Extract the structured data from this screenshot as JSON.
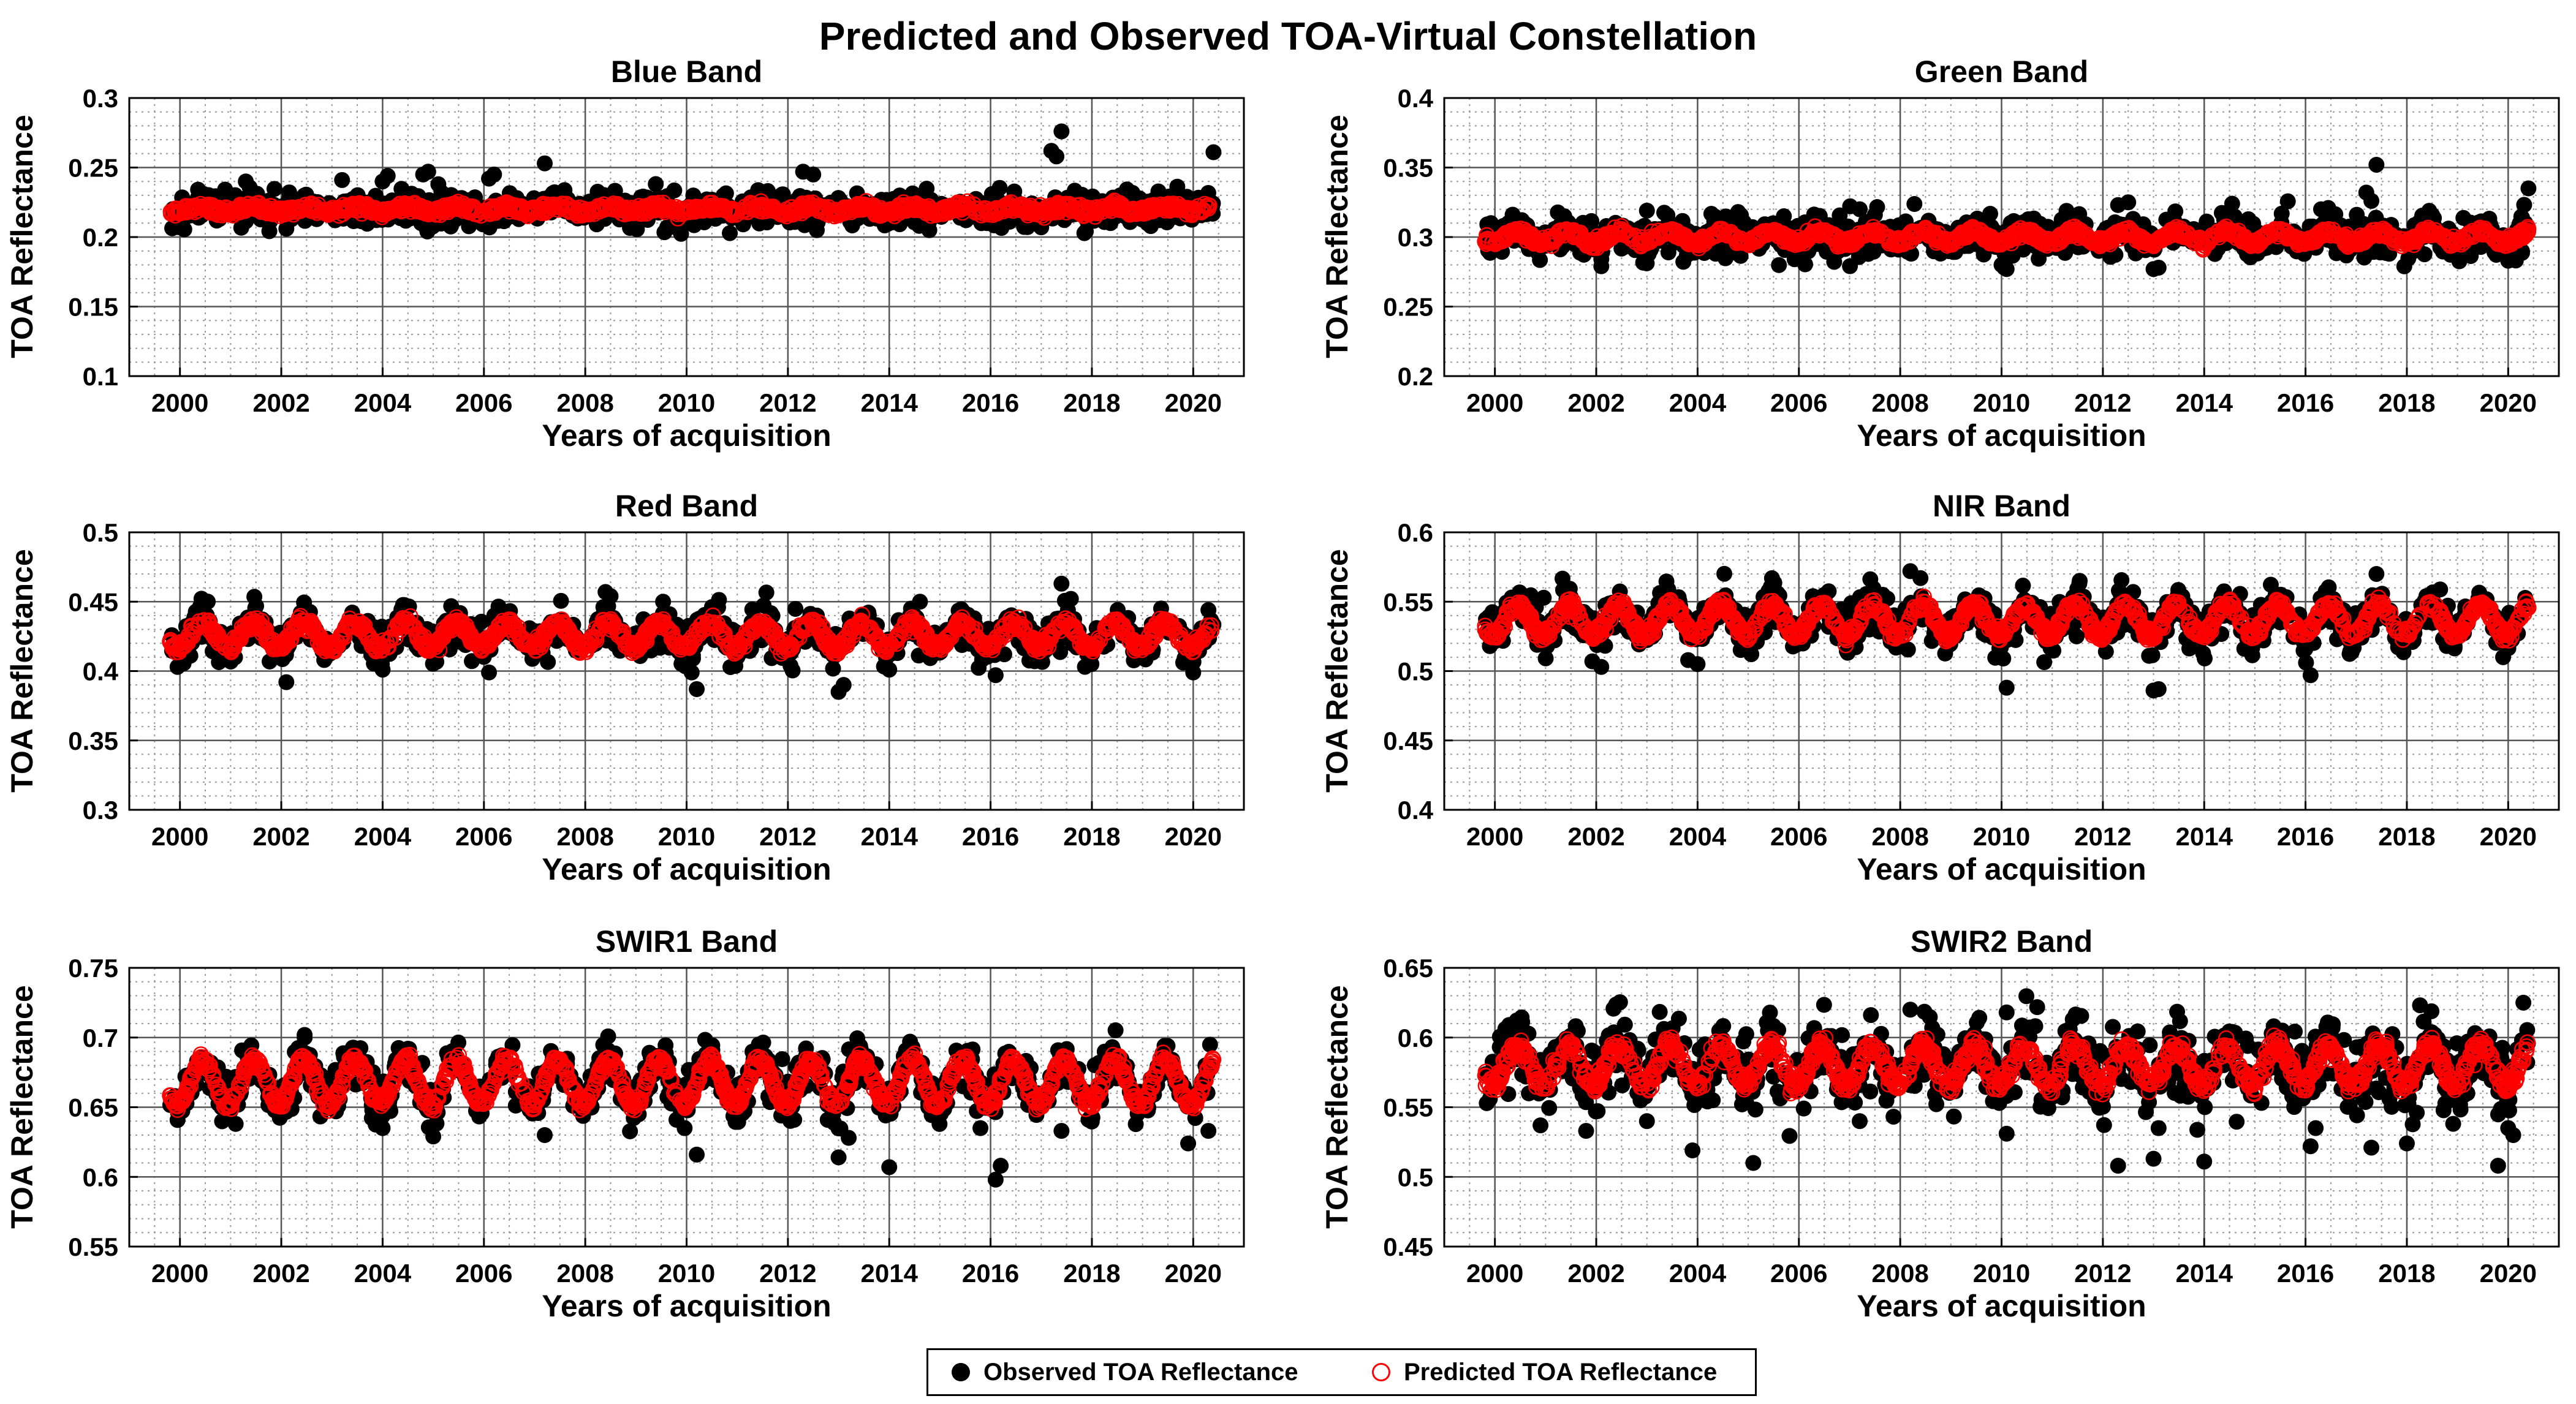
{
  "figure_title": "Predicted and Observed TOA-Virtual Constellation",
  "legend": {
    "observed_label": "Observed TOA Reflectance",
    "predicted_label": "Predicted TOA Reflectance"
  },
  "colors": {
    "observed": "#000000",
    "predicted": "#ff0000",
    "grid_major": "#555555",
    "grid_minor": "#9a9a9a"
  },
  "chart_data": [
    {
      "type": "scatter",
      "title": "Blue Band",
      "xlabel": "Years of acquisition",
      "ylabel": "TOA Reflectance",
      "xlim": [
        1999,
        2021
      ],
      "ylim": [
        0.1,
        0.3
      ],
      "xticks": [
        2000,
        2002,
        2004,
        2006,
        2008,
        2010,
        2012,
        2014,
        2016,
        2018,
        2020
      ],
      "xtick_labels": [
        "2000",
        "2002",
        "2004",
        "2006",
        "2008",
        "2010",
        "2012",
        "2014",
        "2016",
        "2018",
        "2020"
      ],
      "yticks": [
        0.1,
        0.15,
        0.2,
        0.25,
        0.3
      ],
      "ytick_labels": [
        "0.1",
        "0.15",
        "0.2",
        "0.25",
        "0.3"
      ],
      "grid": true,
      "series": [
        {
          "name": "Observed TOA Reflectance",
          "marker": "filled-circle",
          "model": {
            "x_range": [
              1999.8,
              2020.4
            ],
            "mean": 0.22,
            "trend_per_year": 0,
            "seasonal_amplitude": 0.002,
            "scatter_sd": 0.006
          },
          "outliers": [
            [
              2001.3,
              0.24
            ],
            [
              2003.2,
              0.241
            ],
            [
              2004.0,
              0.24
            ],
            [
              2004.1,
              0.244
            ],
            [
              2004.8,
              0.245
            ],
            [
              2004.9,
              0.247
            ],
            [
              2005.1,
              0.238
            ],
            [
              2006.1,
              0.242
            ],
            [
              2006.2,
              0.245
            ],
            [
              2007.2,
              0.253
            ],
            [
              2012.3,
              0.247
            ],
            [
              2012.5,
              0.245
            ],
            [
              2017.2,
              0.262
            ],
            [
              2017.3,
              0.258
            ],
            [
              2017.4,
              0.276
            ],
            [
              2020.4,
              0.261
            ],
            [
              2002.1,
              0.206
            ],
            [
              2017.0,
              0.207
            ]
          ]
        },
        {
          "name": "Predicted TOA Reflectance",
          "marker": "open-circle",
          "model": {
            "x_range": [
              1999.8,
              2020.4
            ],
            "mean": 0.22,
            "trend_per_year": 0,
            "seasonal_amplitude": 0.002,
            "scatter_sd": 0.0015
          }
        }
      ]
    },
    {
      "type": "scatter",
      "title": "Green Band",
      "xlabel": "Years of acquisition",
      "ylabel": "TOA Reflectance",
      "xlim": [
        1999,
        2021
      ],
      "ylim": [
        0.2,
        0.4
      ],
      "xticks": [
        2000,
        2002,
        2004,
        2006,
        2008,
        2010,
        2012,
        2014,
        2016,
        2018,
        2020
      ],
      "xtick_labels": [
        "2000",
        "2002",
        "2004",
        "2006",
        "2008",
        "2010",
        "2012",
        "2014",
        "2016",
        "2018",
        "2020"
      ],
      "yticks": [
        0.2,
        0.25,
        0.3,
        0.35,
        0.4
      ],
      "ytick_labels": [
        "0.2",
        "0.25",
        "0.3",
        "0.35",
        "0.4"
      ],
      "grid": true,
      "series": [
        {
          "name": "Observed TOA Reflectance",
          "marker": "filled-circle",
          "model": {
            "x_range": [
              1999.8,
              2020.4
            ],
            "mean": 0.3,
            "trend_per_year": 0,
            "seasonal_amplitude": 0.004,
            "scatter_sd": 0.007
          },
          "outliers": [
            [
              2002.1,
              0.279
            ],
            [
              2003.0,
              0.319
            ],
            [
              2004.8,
              0.318
            ],
            [
              2007.2,
              0.32
            ],
            [
              2010.0,
              0.28
            ],
            [
              2010.1,
              0.277
            ],
            [
              2012.3,
              0.323
            ],
            [
              2012.5,
              0.325
            ],
            [
              2013.0,
              0.277
            ],
            [
              2013.1,
              0.278
            ],
            [
              2017.2,
              0.332
            ],
            [
              2017.3,
              0.326
            ],
            [
              2017.4,
              0.352
            ],
            [
              2020.0,
              0.283
            ],
            [
              2020.4,
              0.335
            ]
          ]
        },
        {
          "name": "Predicted TOA Reflectance",
          "marker": "open-circle",
          "model": {
            "x_range": [
              1999.8,
              2020.4
            ],
            "mean": 0.3,
            "trend_per_year": 0,
            "seasonal_amplitude": 0.004,
            "scatter_sd": 0.0015
          }
        }
      ]
    },
    {
      "type": "scatter",
      "title": "Red Band",
      "xlabel": "Years of acquisition",
      "ylabel": "TOA Reflectance",
      "xlim": [
        1999,
        2021
      ],
      "ylim": [
        0.3,
        0.5
      ],
      "xticks": [
        2000,
        2002,
        2004,
        2006,
        2008,
        2010,
        2012,
        2014,
        2016,
        2018,
        2020
      ],
      "xtick_labels": [
        "2000",
        "2002",
        "2004",
        "2006",
        "2008",
        "2010",
        "2012",
        "2014",
        "2016",
        "2018",
        "2020"
      ],
      "yticks": [
        0.3,
        0.35,
        0.4,
        0.45,
        0.5
      ],
      "ytick_labels": [
        "0.3",
        "0.35",
        "0.4",
        "0.45",
        "0.5"
      ],
      "grid": true,
      "series": [
        {
          "name": "Observed TOA Reflectance",
          "marker": "filled-circle",
          "model": {
            "x_range": [
              1999.8,
              2020.4
            ],
            "mean": 0.426,
            "trend_per_year": 0,
            "seasonal_amplitude": 0.009,
            "scatter_sd": 0.007
          },
          "outliers": [
            [
              2002.1,
              0.392
            ],
            [
              2004.0,
              0.401
            ],
            [
              2006.1,
              0.399
            ],
            [
              2008.4,
              0.457
            ],
            [
              2008.5,
              0.454
            ],
            [
              2010.1,
              0.399
            ],
            [
              2010.2,
              0.387
            ],
            [
              2013.0,
              0.385
            ],
            [
              2013.1,
              0.39
            ],
            [
              2014.0,
              0.401
            ],
            [
              2016.1,
              0.397
            ],
            [
              2017.4,
              0.463
            ],
            [
              2020.0,
              0.399
            ],
            [
              2020.3,
              0.444
            ]
          ]
        },
        {
          "name": "Predicted TOA Reflectance",
          "marker": "open-circle",
          "model": {
            "x_range": [
              1999.8,
              2020.4
            ],
            "mean": 0.426,
            "trend_per_year": 0,
            "seasonal_amplitude": 0.009,
            "scatter_sd": 0.002
          }
        }
      ]
    },
    {
      "type": "scatter",
      "title": "NIR Band",
      "xlabel": "Years of acquisition",
      "ylabel": "TOA Reflectance",
      "xlim": [
        1999,
        2021
      ],
      "ylim": [
        0.4,
        0.6
      ],
      "xticks": [
        2000,
        2002,
        2004,
        2006,
        2008,
        2010,
        2012,
        2014,
        2016,
        2018,
        2020
      ],
      "xtick_labels": [
        "2000",
        "2002",
        "2004",
        "2006",
        "2008",
        "2010",
        "2012",
        "2014",
        "2016",
        "2018",
        "2020"
      ],
      "yticks": [
        0.4,
        0.45,
        0.5,
        0.55,
        0.6
      ],
      "ytick_labels": [
        "0.4",
        "0.45",
        "0.5",
        "0.55",
        "0.6"
      ],
      "grid": true,
      "series": [
        {
          "name": "Observed TOA Reflectance",
          "marker": "filled-circle",
          "model": {
            "x_range": [
              1999.8,
              2020.4
            ],
            "mean": 0.537,
            "trend_per_year": 0,
            "seasonal_amplitude": 0.011,
            "scatter_sd": 0.008
          },
          "outliers": [
            [
              1999.9,
              0.518
            ],
            [
              2002.1,
              0.503
            ],
            [
              2004.0,
              0.505
            ],
            [
              2008.2,
              0.572
            ],
            [
              2008.4,
              0.567
            ],
            [
              2010.1,
              0.488
            ],
            [
              2013.0,
              0.486
            ],
            [
              2013.1,
              0.487
            ],
            [
              2016.1,
              0.497
            ],
            [
              2017.4,
              0.57
            ],
            [
              2019.9,
              0.51
            ]
          ]
        },
        {
          "name": "Predicted TOA Reflectance",
          "marker": "open-circle",
          "model": {
            "x_range": [
              1999.8,
              2020.4
            ],
            "mean": 0.537,
            "trend_per_year": 0,
            "seasonal_amplitude": 0.011,
            "scatter_sd": 0.002
          }
        }
      ]
    },
    {
      "type": "scatter",
      "title": "SWIR1 Band",
      "xlabel": "Years of acquisition",
      "ylabel": "TOA Reflectance",
      "xlim": [
        1999,
        2021
      ],
      "ylim": [
        0.55,
        0.75
      ],
      "xticks": [
        2000,
        2002,
        2004,
        2006,
        2008,
        2010,
        2012,
        2014,
        2016,
        2018,
        2020
      ],
      "xtick_labels": [
        "2000",
        "2002",
        "2004",
        "2006",
        "2008",
        "2010",
        "2012",
        "2014",
        "2016",
        "2018",
        "2020"
      ],
      "yticks": [
        0.55,
        0.6,
        0.65,
        0.7,
        0.75
      ],
      "ytick_labels": [
        "0.55",
        "0.6",
        "0.65",
        "0.7",
        "0.75"
      ],
      "grid": true,
      "series": [
        {
          "name": "Observed TOA Reflectance",
          "marker": "filled-circle",
          "model": {
            "x_range": [
              1999.8,
              2020.4
            ],
            "mean": 0.668,
            "trend_per_year": 0,
            "seasonal_amplitude": 0.016,
            "scatter_sd": 0.008
          },
          "outliers": [
            [
              1999.9,
              0.658
            ],
            [
              2001.1,
              0.638
            ],
            [
              2004.0,
              0.635
            ],
            [
              2005.0,
              0.629
            ],
            [
              2007.2,
              0.63
            ],
            [
              2009.8,
              0.641
            ],
            [
              2010.2,
              0.616
            ],
            [
              2013.0,
              0.614
            ],
            [
              2013.2,
              0.628
            ],
            [
              2014.0,
              0.607
            ],
            [
              2015.8,
              0.635
            ],
            [
              2016.1,
              0.598
            ],
            [
              2016.2,
              0.608
            ],
            [
              2017.4,
              0.633
            ],
            [
              2019.9,
              0.624
            ],
            [
              2020.3,
              0.633
            ]
          ]
        },
        {
          "name": "Predicted TOA Reflectance",
          "marker": "open-circle",
          "model": {
            "x_range": [
              1999.8,
              2020.4
            ],
            "mean": 0.668,
            "trend_per_year": 0,
            "seasonal_amplitude": 0.016,
            "scatter_sd": 0.002
          }
        }
      ]
    },
    {
      "type": "scatter",
      "title": "SWIR2 Band",
      "xlabel": "Years of acquisition",
      "ylabel": "TOA Reflectance",
      "xlim": [
        1999,
        2021
      ],
      "ylim": [
        0.45,
        0.65
      ],
      "xticks": [
        2000,
        2002,
        2004,
        2006,
        2008,
        2010,
        2012,
        2014,
        2016,
        2018,
        2020
      ],
      "xtick_labels": [
        "2000",
        "2002",
        "2004",
        "2006",
        "2008",
        "2010",
        "2012",
        "2014",
        "2016",
        "2018",
        "2020"
      ],
      "yticks": [
        0.45,
        0.5,
        0.55,
        0.6,
        0.65
      ],
      "ytick_labels": [
        "0.45",
        "0.5",
        "0.55",
        "0.6",
        "0.65"
      ],
      "grid": true,
      "series": [
        {
          "name": "Observed TOA Reflectance",
          "marker": "filled-circle",
          "model": {
            "x_range": [
              1999.8,
              2020.4
            ],
            "mean": 0.58,
            "trend_per_year": 0,
            "seasonal_amplitude": 0.014,
            "scatter_sd": 0.013
          },
          "outliers": [
            [
              1999.9,
              0.556
            ],
            [
              2000.9,
              0.537
            ],
            [
              2001.8,
              0.533
            ],
            [
              2003.0,
              0.54
            ],
            [
              2003.9,
              0.519
            ],
            [
              2004.3,
              0.555
            ],
            [
              2005.1,
              0.51
            ],
            [
              2007.2,
              0.54
            ],
            [
              2008.2,
              0.62
            ],
            [
              2010.1,
              0.531
            ],
            [
              2010.1,
              0.618
            ],
            [
              2012.3,
              0.508
            ],
            [
              2013.1,
              0.535
            ],
            [
              2013.0,
              0.513
            ],
            [
              2014.0,
              0.511
            ],
            [
              2016.1,
              0.522
            ],
            [
              2016.2,
              0.535
            ],
            [
              2017.3,
              0.521
            ],
            [
              2018.0,
              0.524
            ],
            [
              2019.8,
              0.508
            ],
            [
              2020.0,
              0.535
            ],
            [
              2020.1,
              0.53
            ],
            [
              2020.3,
              0.625
            ]
          ]
        },
        {
          "name": "Predicted TOA Reflectance",
          "marker": "open-circle",
          "model": {
            "x_range": [
              1999.8,
              2020.4
            ],
            "mean": 0.58,
            "trend_per_year": 0,
            "seasonal_amplitude": 0.014,
            "scatter_sd": 0.003
          }
        }
      ]
    }
  ]
}
